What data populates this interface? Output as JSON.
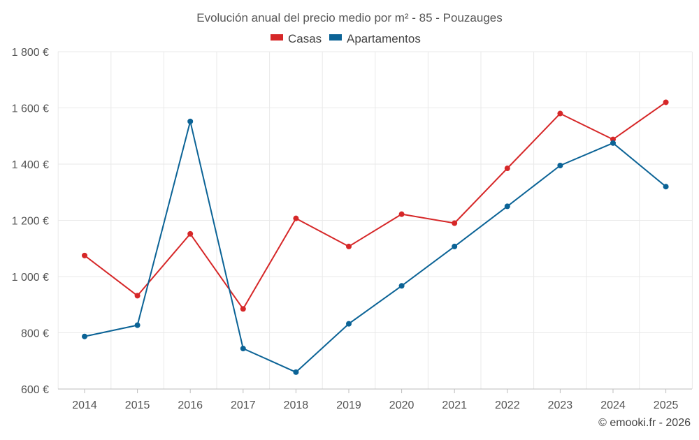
{
  "chart_data": {
    "type": "line",
    "title": "Evolución anual del precio medio por m² - 85 - Pouzauges",
    "categories": [
      "2014",
      "2015",
      "2016",
      "2017",
      "2018",
      "2019",
      "2020",
      "2021",
      "2022",
      "2023",
      "2024",
      "2025"
    ],
    "series": [
      {
        "name": "Casas",
        "color": "#d62728",
        "values": [
          1075,
          932,
          1152,
          885,
          1207,
          1107,
          1222,
          1190,
          1385,
          1580,
          1488,
          1620
        ]
      },
      {
        "name": "Apartamentos",
        "color": "#0b6396",
        "values": [
          787,
          827,
          1552,
          744,
          660,
          832,
          967,
          1107,
          1250,
          1395,
          1475,
          1320
        ]
      }
    ],
    "ylim": [
      600,
      1800
    ],
    "yticks": [
      600,
      800,
      1000,
      1200,
      1400,
      1600,
      1800
    ],
    "ytick_labels": [
      "600 €",
      "800 €",
      "1 000 €",
      "1 200 €",
      "1 400 €",
      "1 600 €",
      "1 800 €"
    ],
    "xlabel": "",
    "ylabel": "",
    "grid": true,
    "legend_position": "top-center"
  },
  "credit": "© emooki.fr - 2026"
}
